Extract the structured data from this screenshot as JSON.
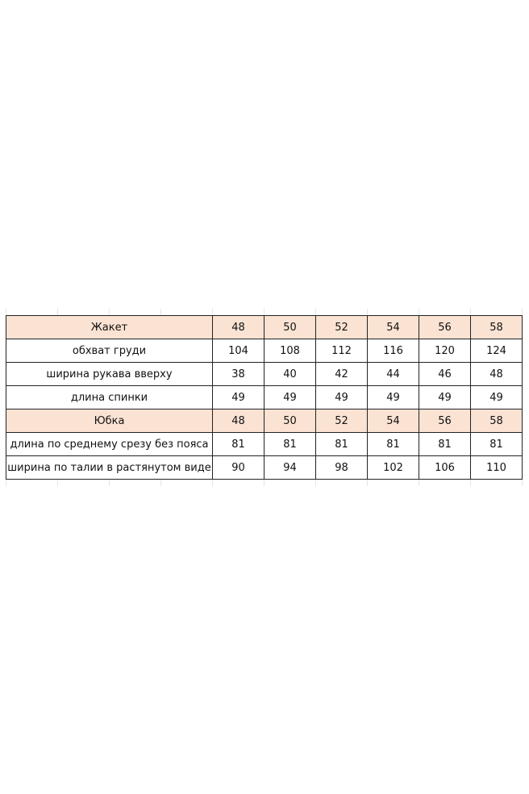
{
  "header_fill": "#fbe3d3",
  "rows": [
    {
      "label": "Жакет",
      "values": [
        "48",
        "50",
        "52",
        "54",
        "56",
        "58"
      ],
      "header": true
    },
    {
      "label": "обхват груди",
      "values": [
        "104",
        "108",
        "112",
        "116",
        "120",
        "124"
      ]
    },
    {
      "label": "ширина рукава вверху",
      "values": [
        "38",
        "40",
        "42",
        "44",
        "46",
        "48"
      ]
    },
    {
      "label": "длина спинки",
      "values": [
        "49",
        "49",
        "49",
        "49",
        "49",
        "49"
      ]
    },
    {
      "label": "Юбка",
      "values": [
        "48",
        "50",
        "52",
        "54",
        "56",
        "58"
      ],
      "header": true
    },
    {
      "label": "длина по среднему срезу без пояса",
      "values": [
        "81",
        "81",
        "81",
        "81",
        "81",
        "81"
      ]
    },
    {
      "label": "ширина по талии в растянутом виде",
      "values": [
        "90",
        "94",
        "98",
        "102",
        "106",
        "110"
      ]
    }
  ]
}
